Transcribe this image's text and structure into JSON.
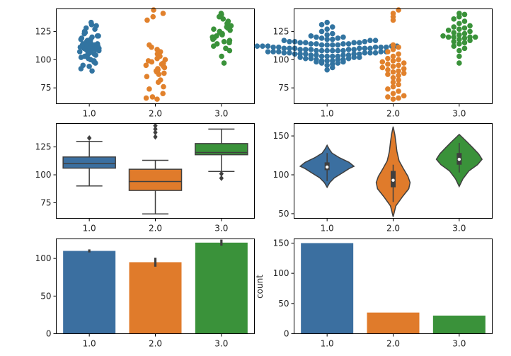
{
  "colors": {
    "c1": "#3274a1",
    "c2": "#e1812c",
    "c3": "#3a923a",
    "c1_box": "#3b6fa0",
    "c2_box": "#e07b2b",
    "c3_box": "#3a923a",
    "dark": "#3f3f3f"
  },
  "chart_data": [
    {
      "type": "scatter",
      "subtype": "strip",
      "name": "strip",
      "categories": [
        "1.0",
        "2.0",
        "3.0"
      ],
      "ylim": [
        61,
        145
      ],
      "yticks": [
        75,
        100,
        125
      ],
      "ytick_labels": [
        "75",
        "100",
        "125"
      ],
      "series": [
        {
          "name": "1.0",
          "values": [
            95,
            98,
            100,
            101,
            103,
            104,
            105,
            106,
            106,
            107,
            107,
            108,
            108,
            108,
            109,
            109,
            109,
            110,
            110,
            110,
            111,
            111,
            111,
            112,
            112,
            112,
            113,
            113,
            114,
            114,
            115,
            115,
            116,
            117,
            118,
            119,
            120,
            121,
            123,
            125,
            127,
            130,
            90,
            92,
            94,
            97,
            99,
            102,
            105,
            108,
            110,
            112,
            114,
            116,
            118,
            121,
            124,
            128,
            131,
            133
          ]
        },
        {
          "name": "2.0",
          "values": [
            65,
            66,
            67,
            70,
            74,
            76,
            80,
            82,
            85,
            87,
            88,
            89,
            90,
            91,
            92,
            93,
            94,
            95,
            96,
            97,
            98,
            99,
            100,
            101,
            103,
            105,
            107,
            109,
            111,
            113,
            135,
            138,
            141,
            144
          ]
        },
        {
          "name": "3.0",
          "values": [
            97,
            103,
            108,
            110,
            112,
            114,
            115,
            116,
            117,
            118,
            119,
            120,
            120,
            121,
            122,
            123,
            124,
            125,
            126,
            127,
            128,
            129,
            130,
            132,
            134,
            136,
            138,
            140,
            141
          ]
        }
      ]
    },
    {
      "type": "scatter",
      "subtype": "swarm",
      "name": "swarm",
      "categories": [
        "1.0",
        "2.0",
        "3.0"
      ],
      "ylim": [
        61,
        145
      ],
      "yticks": [
        75,
        100,
        125
      ],
      "ytick_labels": [
        "75",
        "100",
        "125"
      ],
      "series": [
        {
          "name": "1.0",
          "values": [
            91,
            93,
            95,
            96,
            97,
            97,
            98,
            98,
            99,
            99,
            99,
            100,
            100,
            100,
            101,
            101,
            101,
            102,
            102,
            102,
            103,
            103,
            103,
            103,
            104,
            104,
            104,
            104,
            105,
            105,
            105,
            105,
            105,
            106,
            106,
            106,
            106,
            106,
            107,
            107,
            107,
            107,
            107,
            108,
            108,
            108,
            108,
            108,
            108,
            109,
            109,
            109,
            109,
            109,
            110,
            110,
            110,
            110,
            110,
            110,
            111,
            111,
            111,
            111,
            111,
            112,
            112,
            112,
            112,
            112,
            113,
            113,
            113,
            113,
            114,
            114,
            114,
            114,
            115,
            115,
            115,
            115,
            116,
            116,
            116,
            117,
            117,
            117,
            118,
            118,
            119,
            119,
            120,
            120,
            121,
            122,
            123,
            125,
            127,
            129,
            131,
            133
          ]
        },
        {
          "name": "2.0",
          "values": [
            65,
            66,
            67,
            68,
            70,
            72,
            74,
            76,
            78,
            80,
            82,
            84,
            86,
            87,
            88,
            89,
            90,
            91,
            92,
            93,
            94,
            95,
            96,
            97,
            98,
            99,
            100,
            101,
            103,
            105,
            107,
            109,
            111,
            113,
            135,
            138,
            141,
            144
          ]
        },
        {
          "name": "3.0",
          "values": [
            97,
            103,
            108,
            110,
            112,
            114,
            115,
            116,
            117,
            118,
            119,
            120,
            120,
            120,
            120,
            121,
            122,
            123,
            124,
            125,
            126,
            127,
            128,
            129,
            130,
            132,
            134,
            136,
            138,
            140,
            141
          ]
        }
      ]
    },
    {
      "type": "box",
      "name": "box",
      "categories": [
        "1.0",
        "2.0",
        "3.0"
      ],
      "ylim": [
        61,
        146
      ],
      "yticks": [
        75,
        100,
        125
      ],
      "ytick_labels": [
        "75",
        "100",
        "125"
      ],
      "boxes": [
        {
          "name": "1.0",
          "q1": 106,
          "median": 110,
          "q3": 116,
          "whisker_low": 90,
          "whisker_high": 130,
          "outliers": [
            133
          ]
        },
        {
          "name": "2.0",
          "q1": 86,
          "median": 94,
          "q3": 105,
          "whisker_low": 65,
          "whisker_high": 113,
          "outliers": [
            134,
            138,
            141,
            144
          ]
        },
        {
          "name": "3.0",
          "q1": 118,
          "median": 120,
          "q3": 128,
          "whisker_low": 103,
          "whisker_high": 141,
          "outliers": [
            97,
            101
          ]
        }
      ]
    },
    {
      "type": "violin",
      "name": "violin",
      "categories": [
        "1.0",
        "2.0",
        "3.0"
      ],
      "ylim": [
        44,
        166
      ],
      "yticks": [
        50,
        100,
        150
      ],
      "ytick_labels": [
        "50",
        "100",
        "150"
      ],
      "violins": [
        {
          "name": "1.0",
          "min": 84,
          "max": 138,
          "q1": 106,
          "median": 110,
          "q3": 116,
          "whisker_low": 92,
          "whisker_high": 128,
          "profile": [
            [
              84,
              0.0
            ],
            [
              90,
              0.1
            ],
            [
              96,
              0.27
            ],
            [
              102,
              0.55
            ],
            [
              108,
              0.82
            ],
            [
              111,
              1.0
            ],
            [
              116,
              0.82
            ],
            [
              122,
              0.46
            ],
            [
              128,
              0.18
            ],
            [
              133,
              0.08
            ],
            [
              138,
              0.0
            ]
          ]
        },
        {
          "name": "2.0",
          "min": 46,
          "max": 162,
          "q1": 84,
          "median": 93,
          "q3": 105,
          "whisker_low": 65,
          "whisker_high": 113,
          "profile": [
            [
              46,
              0.0
            ],
            [
              60,
              0.1
            ],
            [
              72,
              0.35
            ],
            [
              82,
              0.58
            ],
            [
              90,
              0.63
            ],
            [
              98,
              0.55
            ],
            [
              108,
              0.38
            ],
            [
              118,
              0.22
            ],
            [
              130,
              0.14
            ],
            [
              142,
              0.1
            ],
            [
              152,
              0.06
            ],
            [
              162,
              0.0
            ]
          ]
        },
        {
          "name": "3.0",
          "min": 85,
          "max": 152,
          "q1": 113,
          "median": 120,
          "q3": 128,
          "whisker_low": 103,
          "whisker_high": 141,
          "profile": [
            [
              85,
              0.0
            ],
            [
              95,
              0.14
            ],
            [
              105,
              0.36
            ],
            [
              113,
              0.68
            ],
            [
              120,
              0.85
            ],
            [
              127,
              0.72
            ],
            [
              135,
              0.5
            ],
            [
              143,
              0.27
            ],
            [
              152,
              0.0
            ]
          ]
        }
      ]
    },
    {
      "type": "bar",
      "name": "bar",
      "categories": [
        "1.0",
        "2.0",
        "3.0"
      ],
      "values": [
        110,
        95,
        121
      ],
      "errors": [
        [
          108,
          112
        ],
        [
          89,
          101
        ],
        [
          117,
          125
        ]
      ],
      "ylim": [
        0,
        126
      ],
      "yticks": [
        0,
        50,
        100
      ],
      "ytick_labels": [
        "0",
        "50",
        "100"
      ]
    },
    {
      "type": "bar",
      "name": "count",
      "categories": [
        "1.0",
        "2.0",
        "3.0"
      ],
      "values": [
        150,
        35,
        30
      ],
      "ylabel": "count",
      "ylim": [
        0,
        157
      ],
      "yticks": [
        0,
        50,
        100,
        150
      ],
      "ytick_labels": [
        "0",
        "50",
        "100",
        "150"
      ]
    }
  ]
}
